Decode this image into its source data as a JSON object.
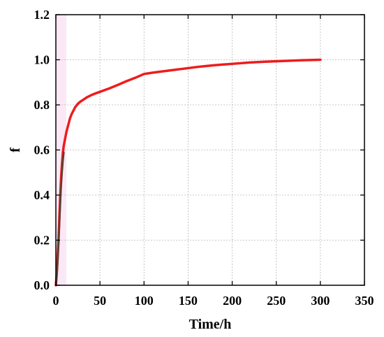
{
  "chart_data": {
    "type": "line",
    "title": "",
    "xlabel": "Time/h",
    "ylabel": "f",
    "xlim": [
      0,
      350
    ],
    "ylim": [
      0,
      1.2
    ],
    "x_ticks": [
      0,
      50,
      100,
      150,
      200,
      250,
      300,
      350
    ],
    "y_ticks": [
      "0.0",
      "0.2",
      "0.4",
      "0.6",
      "0.8",
      "1.0",
      "1.2"
    ],
    "grid": true,
    "series": [
      {
        "color": "#ee1c1c",
        "x": [
          0,
          1,
          2,
          3,
          4,
          5,
          6,
          7,
          8,
          9,
          10,
          12,
          14,
          16,
          18,
          20,
          22,
          25,
          28,
          30,
          35,
          40,
          45,
          50,
          60,
          70,
          80,
          90,
          100,
          110,
          120,
          130,
          140,
          150,
          160,
          170,
          180,
          190,
          200,
          220,
          240,
          260,
          280,
          300
        ],
        "y": [
          0.0,
          0.05,
          0.12,
          0.2,
          0.3,
          0.4,
          0.48,
          0.54,
          0.59,
          0.62,
          0.64,
          0.68,
          0.71,
          0.74,
          0.76,
          0.775,
          0.79,
          0.805,
          0.815,
          0.82,
          0.833,
          0.843,
          0.851,
          0.858,
          0.872,
          0.888,
          0.905,
          0.92,
          0.937,
          0.943,
          0.948,
          0.953,
          0.958,
          0.963,
          0.968,
          0.972,
          0.976,
          0.979,
          0.982,
          0.988,
          0.992,
          0.995,
          0.998,
          1.0
        ]
      },
      {
        "color": "#5a4030",
        "x": [
          0,
          1,
          2,
          3,
          4,
          5,
          6,
          7,
          8,
          9
        ],
        "y": [
          0.0,
          0.04,
          0.1,
          0.18,
          0.27,
          0.36,
          0.44,
          0.5,
          0.55,
          0.59
        ]
      }
    ],
    "shaded_region": {
      "x": [
        0,
        12
      ],
      "color": "#fbe8f6"
    }
  }
}
